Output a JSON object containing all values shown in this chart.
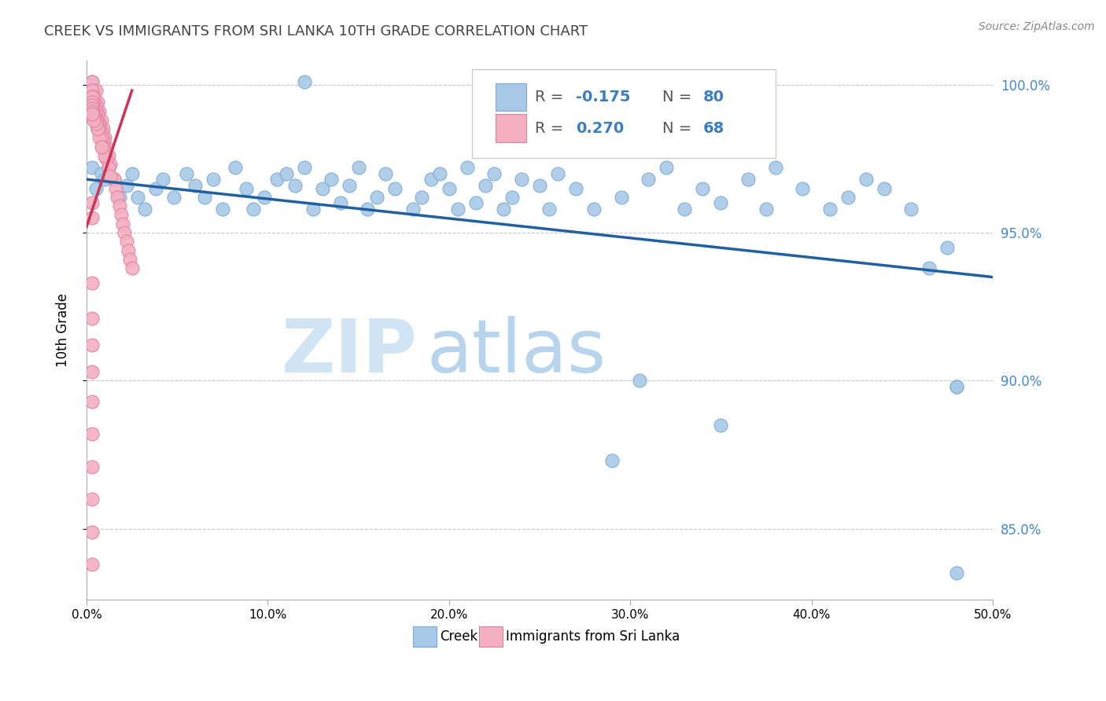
{
  "title": "CREEK VS IMMIGRANTS FROM SRI LANKA 10TH GRADE CORRELATION CHART",
  "source": "Source: ZipAtlas.com",
  "ylabel": "10th Grade",
  "xlim": [
    0.0,
    0.5
  ],
  "ylim": [
    0.826,
    1.008
  ],
  "xtick_labels": [
    "0.0%",
    "10.0%",
    "20.0%",
    "30.0%",
    "40.0%",
    "50.0%"
  ],
  "xtick_vals": [
    0.0,
    0.1,
    0.2,
    0.3,
    0.4,
    0.5
  ],
  "ytick_labels_right": [
    "85.0%",
    "90.0%",
    "95.0%",
    "100.0%"
  ],
  "ytick_vals": [
    0.85,
    0.9,
    0.95,
    1.0
  ],
  "color_blue": "#a8c8e8",
  "color_pink": "#f4b0c0",
  "color_blue_edge": "#7aaacf",
  "color_pink_edge": "#e080a0",
  "color_blue_line": "#2060a0",
  "color_pink_line": "#cc3355",
  "color_text_blue": "#3a7ebf",
  "color_title": "#444444",
  "color_source": "#888888",
  "color_grid": "#c8c8c8",
  "color_right_axis": "#4488cc",
  "watermark_zip_color": "#d0e4f4",
  "watermark_atlas_color": "#b8d4ec",
  "blue_scatter_x": [
    0.003,
    0.12,
    0.003,
    0.005,
    0.008,
    0.01,
    0.012,
    0.015,
    0.018,
    0.022,
    0.025,
    0.028,
    0.032,
    0.038,
    0.042,
    0.048,
    0.055,
    0.06,
    0.065,
    0.07,
    0.075,
    0.082,
    0.088,
    0.092,
    0.098,
    0.105,
    0.11,
    0.115,
    0.12,
    0.125,
    0.13,
    0.135,
    0.14,
    0.145,
    0.15,
    0.155,
    0.16,
    0.165,
    0.17,
    0.18,
    0.185,
    0.19,
    0.195,
    0.2,
    0.205,
    0.21,
    0.215,
    0.22,
    0.225,
    0.23,
    0.235,
    0.24,
    0.25,
    0.255,
    0.26,
    0.27,
    0.28,
    0.295,
    0.31,
    0.32,
    0.33,
    0.34,
    0.35,
    0.365,
    0.375,
    0.38,
    0.395,
    0.41,
    0.42,
    0.43,
    0.44,
    0.455,
    0.465,
    0.475,
    0.29,
    0.305,
    0.35,
    0.48,
    0.48,
    0.48
  ],
  "blue_scatter_y": [
    1.001,
    1.001,
    0.972,
    0.965,
    0.97,
    0.968,
    0.972,
    0.968,
    0.962,
    0.966,
    0.97,
    0.962,
    0.958,
    0.965,
    0.968,
    0.962,
    0.97,
    0.966,
    0.962,
    0.968,
    0.958,
    0.972,
    0.965,
    0.958,
    0.962,
    0.968,
    0.97,
    0.966,
    0.972,
    0.958,
    0.965,
    0.968,
    0.96,
    0.966,
    0.972,
    0.958,
    0.962,
    0.97,
    0.965,
    0.958,
    0.962,
    0.968,
    0.97,
    0.965,
    0.958,
    0.972,
    0.96,
    0.966,
    0.97,
    0.958,
    0.962,
    0.968,
    0.966,
    0.958,
    0.97,
    0.965,
    0.958,
    0.962,
    0.968,
    0.972,
    0.958,
    0.965,
    0.96,
    0.968,
    0.958,
    0.972,
    0.965,
    0.958,
    0.962,
    0.968,
    0.965,
    0.958,
    0.938,
    0.945,
    0.873,
    0.9,
    0.885,
    0.898,
    0.898,
    0.835
  ],
  "pink_scatter_x": [
    0.003,
    0.005,
    0.006,
    0.007,
    0.008,
    0.009,
    0.01,
    0.011,
    0.012,
    0.013,
    0.015,
    0.016,
    0.017,
    0.018,
    0.019,
    0.02,
    0.021,
    0.022,
    0.023,
    0.024,
    0.025,
    0.003,
    0.004,
    0.005,
    0.006,
    0.007,
    0.008,
    0.009,
    0.01,
    0.011,
    0.012,
    0.013,
    0.003,
    0.004,
    0.005,
    0.006,
    0.007,
    0.008,
    0.009,
    0.01,
    0.003,
    0.004,
    0.005,
    0.006,
    0.007,
    0.008,
    0.003,
    0.004,
    0.005,
    0.006,
    0.003,
    0.004,
    0.005,
    0.003,
    0.004,
    0.003,
    0.003,
    0.003,
    0.003,
    0.003,
    0.003,
    0.003,
    0.003,
    0.003,
    0.003,
    0.003,
    0.003,
    0.003
  ],
  "pink_scatter_y": [
    1.001,
    0.998,
    0.994,
    0.991,
    0.988,
    0.985,
    0.982,
    0.979,
    0.976,
    0.973,
    0.968,
    0.965,
    0.962,
    0.959,
    0.956,
    0.953,
    0.95,
    0.947,
    0.944,
    0.941,
    0.938,
    0.998,
    0.996,
    0.993,
    0.99,
    0.987,
    0.984,
    0.981,
    0.978,
    0.975,
    0.972,
    0.969,
    0.996,
    0.993,
    0.991,
    0.988,
    0.985,
    0.982,
    0.979,
    0.976,
    0.994,
    0.991,
    0.988,
    0.985,
    0.982,
    0.979,
    0.993,
    0.99,
    0.988,
    0.985,
    0.992,
    0.989,
    0.987,
    0.991,
    0.988,
    0.99,
    0.933,
    0.921,
    0.912,
    0.903,
    0.893,
    0.882,
    0.871,
    0.86,
    0.849,
    0.838,
    0.96,
    0.955
  ],
  "blue_trend_x": [
    0.0,
    0.5
  ],
  "blue_trend_y": [
    0.968,
    0.935
  ],
  "pink_trend_x": [
    0.0,
    0.025
  ],
  "pink_trend_y": [
    0.952,
    0.998
  ]
}
